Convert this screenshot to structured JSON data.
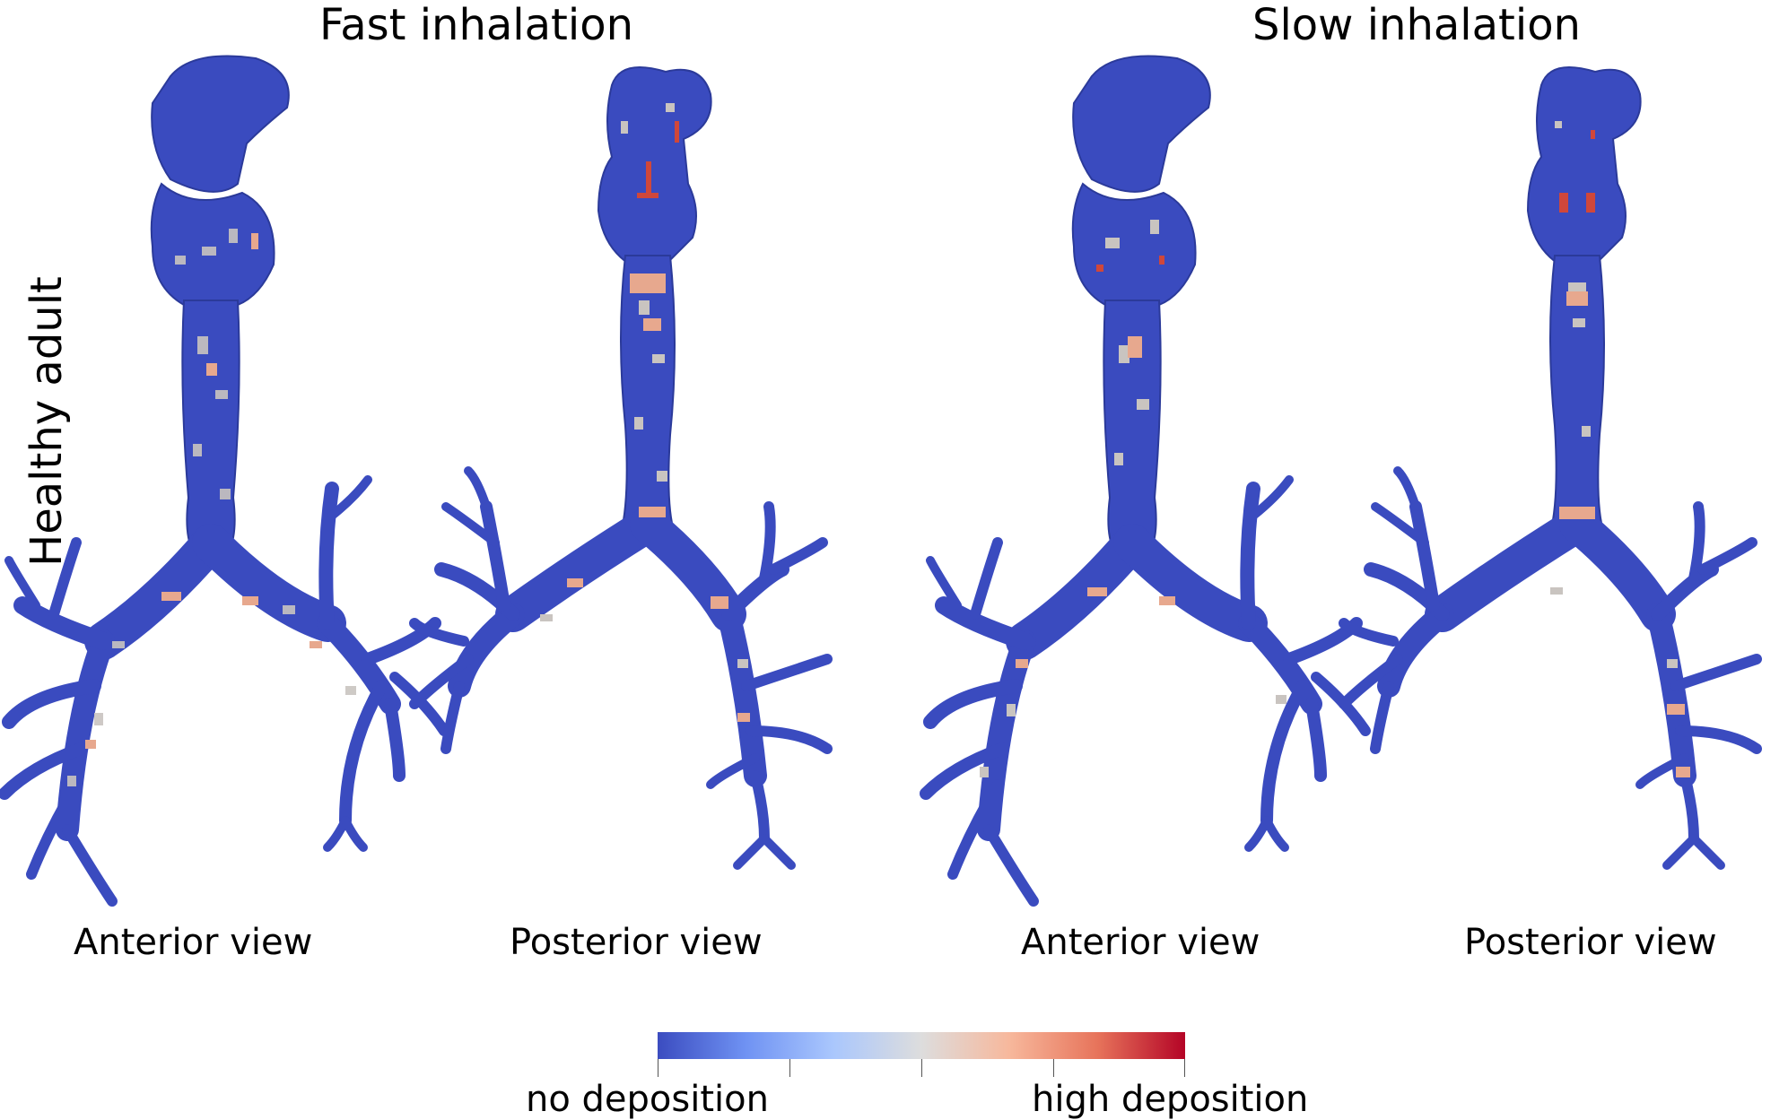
{
  "titles": {
    "fast": "Fast inhalation",
    "slow": "Slow inhalation"
  },
  "row_label": "Healthy adult",
  "views": {
    "fast_anterior": "Anterior view",
    "fast_posterior": "Posterior view",
    "slow_anterior": "Anterior view",
    "slow_posterior": "Posterior view"
  },
  "colorbar": {
    "low_label": "no deposition",
    "high_label": "high deposition",
    "colors": [
      "#3b4cc0",
      "#6f92f3",
      "#aac7fd",
      "#dddddd",
      "#f7b89c",
      "#e7745b",
      "#b40426"
    ]
  },
  "palette": {
    "airway_blue": "#3a4bbf",
    "airway_dark": "#2b3a9a",
    "speckle_light": "#c9c4c0",
    "speckle_peach": "#e7a88e",
    "speckle_red": "#d0473a"
  }
}
